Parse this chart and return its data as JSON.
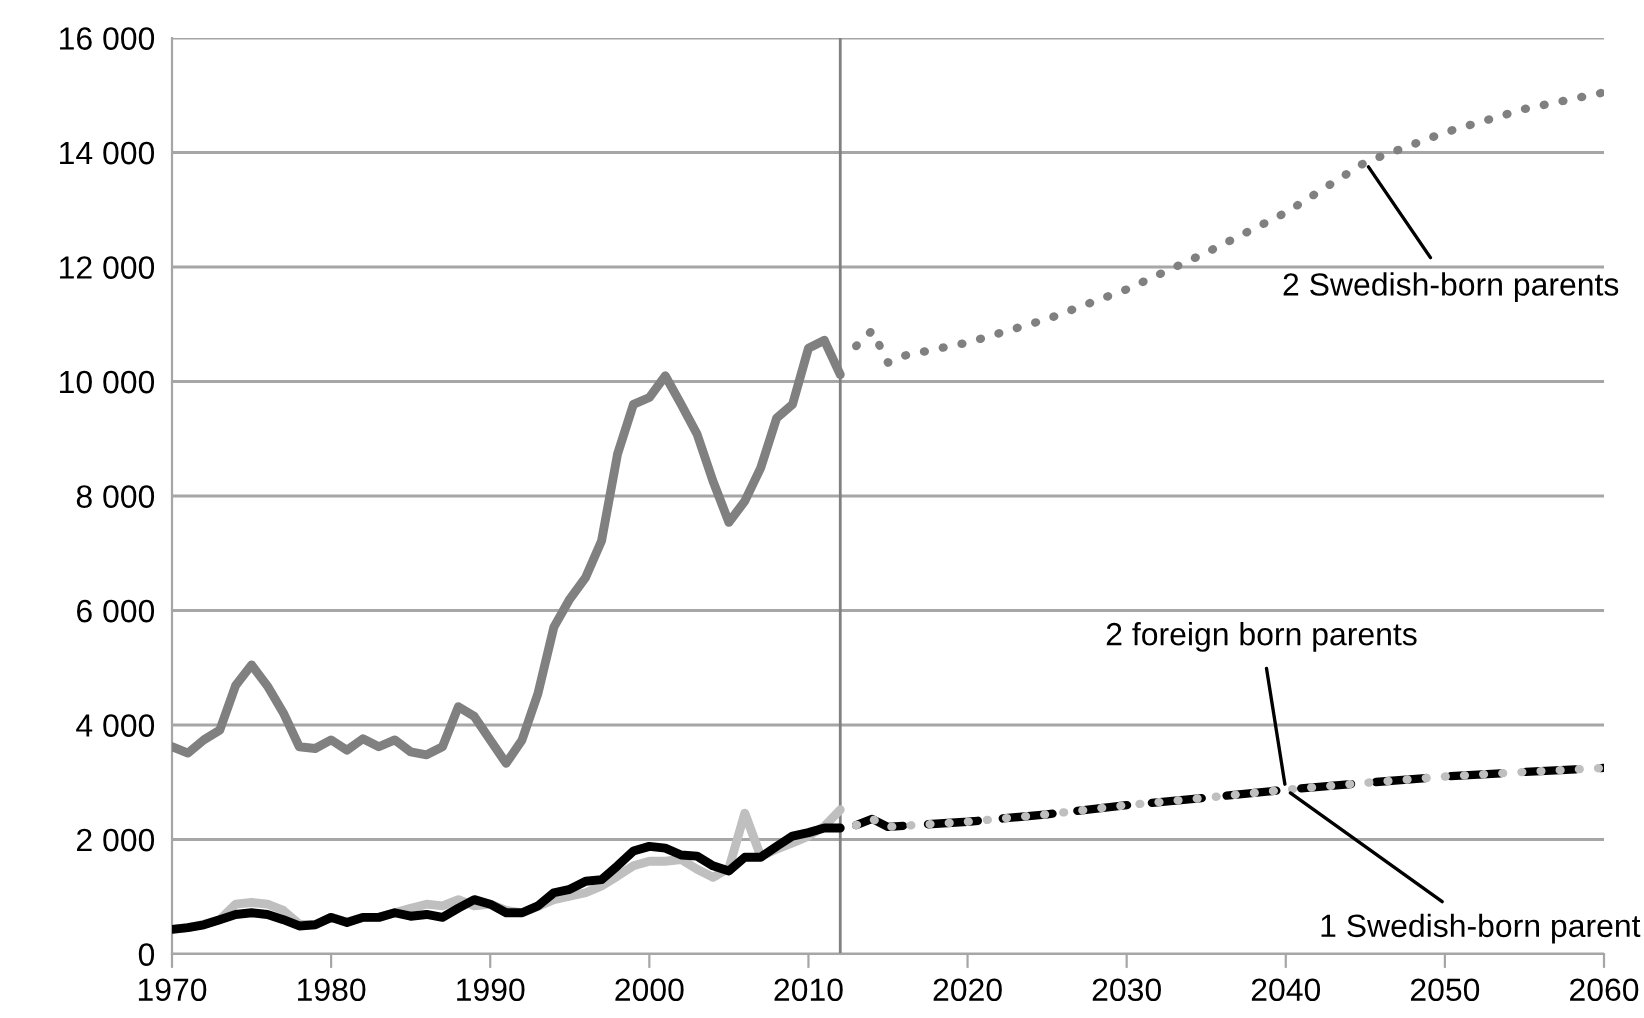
{
  "chart_data": {
    "type": "line",
    "xlim": [
      1970,
      2060
    ],
    "xticks": [
      1970,
      1980,
      1990,
      2000,
      2010,
      2020,
      2030,
      2040,
      2050,
      2060
    ],
    "ylim": [
      0,
      16000
    ],
    "yticks": [
      {
        "value": 0,
        "label": "0"
      },
      {
        "value": 2000,
        "label": "2 000"
      },
      {
        "value": 4000,
        "label": "4 000"
      },
      {
        "value": 6000,
        "label": "6 000"
      },
      {
        "value": 8000,
        "label": "8 000"
      },
      {
        "value": 10000,
        "label": "10 000"
      },
      {
        "value": 12000,
        "label": "12 000"
      },
      {
        "value": 14000,
        "label": "14 000"
      },
      {
        "value": 16000,
        "label": "16 000"
      }
    ],
    "grid": "y",
    "legend": false,
    "marker": "none",
    "ref_lines": [
      {
        "axis": "x",
        "value": 2012,
        "color": "#808080",
        "line_style": "solid"
      }
    ],
    "series": [
      {
        "color": "#808080",
        "line_style": "solid",
        "x": [
          1970,
          1971,
          1972,
          1973,
          1974,
          1975,
          1976,
          1977,
          1978,
          1979,
          1980,
          1981,
          1982,
          1983,
          1984,
          1985,
          1986,
          1987,
          1988,
          1989,
          1990,
          1991,
          1992,
          1993,
          1994,
          1995,
          1996,
          1997,
          1998,
          1999,
          2000,
          2001,
          2002,
          2003,
          2004,
          2005,
          2006,
          2007,
          2008,
          2009,
          2010,
          2011,
          2012
        ],
        "values": [
          3620,
          3510,
          3740,
          3910,
          4690,
          5050,
          4680,
          4210,
          3620,
          3590,
          3740,
          3560,
          3760,
          3620,
          3740,
          3530,
          3480,
          3620,
          4320,
          4150,
          3740,
          3330,
          3740,
          4550,
          5710,
          6200,
          6580,
          7220,
          8730,
          9600,
          9720,
          10100,
          9600,
          9080,
          8260,
          7540,
          7910,
          8490,
          9360,
          9600,
          10580,
          10720,
          10120
        ]
      },
      {
        "color": "#bfbfbf",
        "line_style": "solid",
        "x": [
          1970,
          1971,
          1972,
          1973,
          1974,
          1975,
          1976,
          1977,
          1978,
          1979,
          1980,
          1981,
          1982,
          1983,
          1984,
          1985,
          1986,
          1987,
          1988,
          1989,
          1990,
          1991,
          1992,
          1993,
          1994,
          1995,
          1996,
          1997,
          1998,
          1999,
          2000,
          2001,
          2002,
          2003,
          2004,
          2005,
          2006,
          2007,
          2008,
          2009,
          2010,
          2011,
          2012
        ],
        "values": [
          430,
          460,
          520,
          600,
          870,
          900,
          870,
          760,
          520,
          510,
          640,
          560,
          640,
          640,
          720,
          800,
          870,
          840,
          950,
          840,
          870,
          760,
          720,
          830,
          950,
          1010,
          1070,
          1190,
          1360,
          1540,
          1620,
          1620,
          1650,
          1480,
          1340,
          1500,
          2460,
          1710,
          1830,
          1940,
          2060,
          2230,
          2520
        ]
      },
      {
        "color": "#000000",
        "line_style": "solid",
        "x": [
          1970,
          1971,
          1972,
          1973,
          1974,
          1975,
          1976,
          1977,
          1978,
          1979,
          1980,
          1981,
          1982,
          1983,
          1984,
          1985,
          1986,
          1987,
          1988,
          1989,
          1990,
          1991,
          1992,
          1993,
          1994,
          1995,
          1996,
          1997,
          1998,
          1999,
          2000,
          2001,
          2002,
          2003,
          2004,
          2005,
          2006,
          2007,
          2008,
          2009,
          2010,
          2011,
          2012
        ],
        "values": [
          430,
          460,
          510,
          600,
          690,
          720,
          690,
          600,
          490,
          510,
          640,
          550,
          640,
          640,
          720,
          660,
          690,
          640,
          800,
          950,
          870,
          720,
          720,
          840,
          1070,
          1130,
          1270,
          1300,
          1540,
          1800,
          1880,
          1850,
          1730,
          1710,
          1540,
          1450,
          1690,
          1690,
          1880,
          2060,
          2120,
          2200,
          2200
        ]
      },
      {
        "name": "2 Swedish-born parents",
        "color": "#808080",
        "line_style": "dotted",
        "x": [
          2013,
          2014,
          2015,
          2016,
          2020,
          2025,
          2030,
          2035,
          2040,
          2045,
          2050,
          2055,
          2060
        ],
        "values": [
          10620,
          10890,
          10330,
          10450,
          10680,
          11090,
          11610,
          12250,
          12950,
          13830,
          14350,
          14760,
          15050
        ]
      },
      {
        "name": "2 foreign born parents",
        "color": "#000000",
        "line_style": "dashed",
        "x": [
          2013,
          2014,
          2015,
          2016,
          2020,
          2025,
          2030,
          2035,
          2040,
          2045,
          2050,
          2055,
          2060
        ],
        "values": [
          2250,
          2360,
          2220,
          2240,
          2310,
          2440,
          2600,
          2730,
          2870,
          2990,
          3100,
          3180,
          3250
        ]
      },
      {
        "name": "1 Swedish-born parent",
        "color": "#bfbfbf",
        "line_style": "dotted",
        "x": [
          2013,
          2014,
          2015,
          2016,
          2020,
          2025,
          2030,
          2035,
          2040,
          2045,
          2050,
          2055,
          2060
        ],
        "values": [
          2250,
          2360,
          2220,
          2240,
          2310,
          2440,
          2600,
          2730,
          2870,
          2990,
          3100,
          3180,
          3250
        ]
      }
    ]
  }
}
